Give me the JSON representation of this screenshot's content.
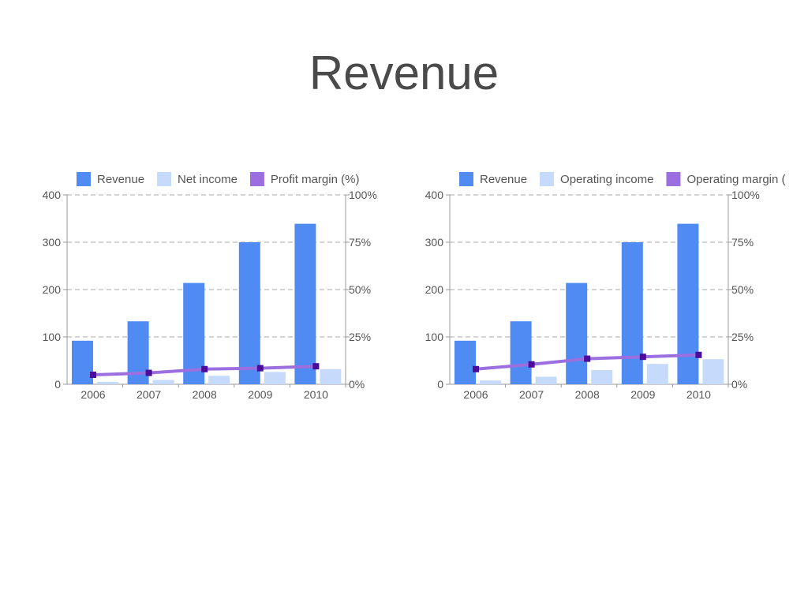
{
  "page": {
    "title": "Revenue"
  },
  "colors": {
    "revenue": "#4f8bf3",
    "income": "#c6dafb",
    "margin_line": "#9b6fe0",
    "margin_marker": "#4b0c9c",
    "grid": "#aaaaaa",
    "axis": "#999999"
  },
  "chart_data": [
    {
      "type": "bar",
      "categories": [
        "2006",
        "2007",
        "2008",
        "2009",
        "2010"
      ],
      "series": [
        {
          "name": "Revenue",
          "kind": "bar",
          "axis": "left",
          "values": [
            92,
            133,
            214,
            300,
            339
          ]
        },
        {
          "name": "Net income",
          "kind": "bar",
          "axis": "left",
          "values": [
            5,
            9,
            18,
            26,
            32
          ]
        },
        {
          "name": "Profit margin (%)",
          "kind": "line",
          "axis": "right",
          "values": [
            5,
            6,
            8,
            8.5,
            9.5
          ]
        }
      ],
      "y_left": {
        "min": 0,
        "max": 400,
        "ticks": [
          "0",
          "100",
          "200",
          "300",
          "400"
        ]
      },
      "y_right": {
        "min": 0,
        "max": 100,
        "ticks": [
          "0%",
          "25%",
          "50%",
          "75%",
          "100%"
        ]
      },
      "grid": true,
      "legend": "top"
    },
    {
      "type": "bar",
      "categories": [
        "2006",
        "2007",
        "2008",
        "2009",
        "2010"
      ],
      "series": [
        {
          "name": "Revenue",
          "kind": "bar",
          "axis": "left",
          "values": [
            92,
            133,
            214,
            300,
            339
          ]
        },
        {
          "name": "Operating income",
          "kind": "bar",
          "axis": "left",
          "values": [
            8,
            16,
            30,
            43,
            53
          ]
        },
        {
          "name": "Operating margin (%)",
          "kind": "line",
          "axis": "right",
          "values": [
            8,
            10.5,
            13.5,
            14.5,
            15.5
          ]
        }
      ],
      "y_left": {
        "min": 0,
        "max": 400,
        "ticks": [
          "0",
          "100",
          "200",
          "300",
          "400"
        ]
      },
      "y_right": {
        "min": 0,
        "max": 100,
        "ticks": [
          "0%",
          "25%",
          "50%",
          "75%",
          "100%"
        ]
      },
      "grid": true,
      "legend": "top"
    }
  ]
}
